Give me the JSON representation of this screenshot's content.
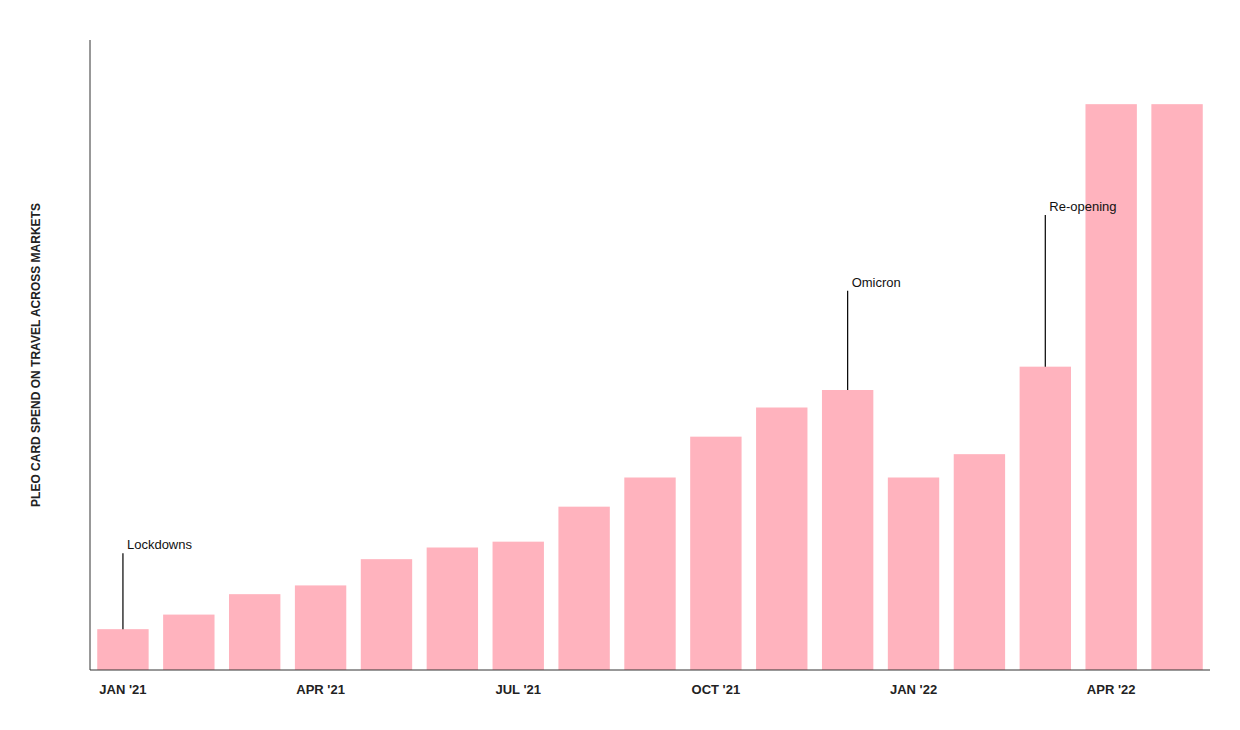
{
  "chart_data": {
    "type": "bar",
    "y_label": "PLEO CARD SPEND ON TRAVEL ACROSS MARKETS",
    "categories": [
      "JAN '21",
      null,
      null,
      "APR '21",
      null,
      null,
      "JUL '21",
      null,
      null,
      "OCT '21",
      null,
      null,
      "JAN '22",
      null,
      null,
      "APR '22",
      null
    ],
    "values": [
      7,
      9.5,
      13,
      14.5,
      19,
      21,
      22,
      28,
      33,
      40,
      45,
      48,
      33,
      37,
      52,
      97,
      97
    ],
    "color": "#FFB3BE",
    "ylim": [
      0,
      108
    ],
    "grid": false,
    "tick_labels": "x",
    "annotations": [
      {
        "label": "Lockdowns",
        "index": 0,
        "y": 20
      },
      {
        "label": "Omicron",
        "index": 11,
        "y": 65
      },
      {
        "label": "Re-opening",
        "index": 14,
        "y": 78
      }
    ]
  }
}
